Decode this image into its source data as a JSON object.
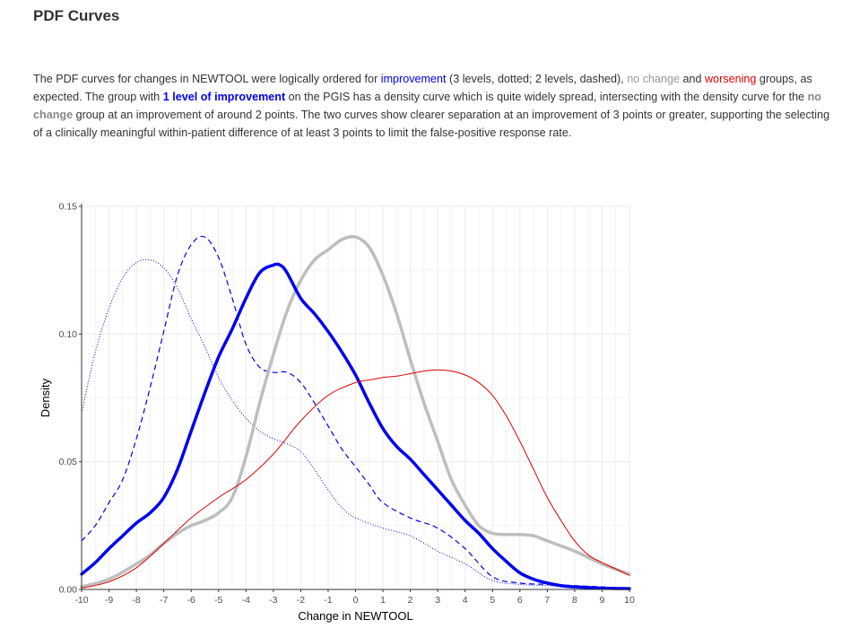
{
  "header": {
    "title": "PDF Curves"
  },
  "description": {
    "p1": "The PDF curves for changes in NEWTOOL were logically ordered for ",
    "improvement": "improvement",
    "p2": " (3 levels, dotted; 2 levels, dashed), ",
    "no_change": "no change",
    "p3": " and ",
    "worsening": "worsening",
    "p4": " groups, as expected. The group with ",
    "one_level": "1 level of improvement",
    "p5": " on the PGIS has a density curve which is quite widely spread, intersecting with the density curve for the ",
    "no_change_bold": "no change",
    "p6": " group at an improvement of around 2 points. The two curves show clearer separation at an improvement of 3 points or greater, supporting the selecting of a clinically meaningful within-patient difference of at least 3 points to limit the false-positive response rate."
  },
  "colors": {
    "improvement": "#0000ee",
    "no_change": "#bebebe",
    "worsening": "#dd0000",
    "grid": "#ebebeb"
  },
  "chart_data": {
    "type": "line",
    "xlabel": "Change in NEWTOOL",
    "ylabel": "Density",
    "xlim": [
      -10,
      10
    ],
    "ylim": [
      0,
      0.15
    ],
    "x_ticks": [
      -10,
      -9,
      -8,
      -7,
      -6,
      -5,
      -4,
      -3,
      -2,
      -1,
      0,
      1,
      2,
      3,
      4,
      5,
      6,
      7,
      8,
      9,
      10
    ],
    "x_tick_labels": [
      "-10",
      "-9",
      "-8",
      "-7",
      "-6",
      "-5",
      "-4",
      "-3",
      "-2",
      "-1",
      "0",
      "1",
      "2",
      "3",
      "4",
      "5",
      "6",
      "7",
      "8",
      "9",
      "10"
    ],
    "y_ticks": [
      0,
      0.05,
      0.1,
      0.15
    ],
    "y_tick_labels": [
      "0.00",
      "0.05",
      "0.10",
      "0.15"
    ],
    "grid": true,
    "legend": "none",
    "series": [
      {
        "style": "dotted",
        "color": "#0000ee",
        "width": 1,
        "x": [
          -10,
          -9.5,
          -9,
          -8.5,
          -8,
          -7.5,
          -7,
          -6.5,
          -6,
          -5.5,
          -5,
          -4.5,
          -4,
          -3.5,
          -3,
          -2.5,
          -2,
          -1.5,
          -1,
          -0.5,
          0,
          1,
          2,
          3,
          4,
          5,
          6,
          7,
          8,
          9,
          10
        ],
        "y": [
          0.069,
          0.093,
          0.11,
          0.122,
          0.128,
          0.129,
          0.126,
          0.118,
          0.106,
          0.095,
          0.083,
          0.074,
          0.067,
          0.062,
          0.059,
          0.057,
          0.054,
          0.047,
          0.039,
          0.032,
          0.028,
          0.024,
          0.021,
          0.015,
          0.01,
          0.0035,
          0.002,
          0.0015,
          0.001,
          0.0005,
          0.0005
        ]
      },
      {
        "style": "dashed",
        "color": "#0000ee",
        "width": 1.2,
        "x": [
          -10,
          -9.5,
          -9,
          -8.5,
          -8,
          -7.5,
          -7,
          -6.5,
          -6,
          -5.5,
          -5,
          -4.5,
          -4,
          -3.5,
          -3,
          -2.5,
          -2,
          -1.5,
          -1,
          -0.5,
          0,
          0.5,
          1,
          2,
          3,
          4,
          5,
          6,
          7,
          8,
          9,
          10
        ],
        "y": [
          0.019,
          0.025,
          0.034,
          0.043,
          0.059,
          0.079,
          0.101,
          0.123,
          0.135,
          0.138,
          0.13,
          0.114,
          0.096,
          0.087,
          0.085,
          0.085,
          0.081,
          0.073,
          0.064,
          0.055,
          0.048,
          0.041,
          0.034,
          0.028,
          0.024,
          0.016,
          0.005,
          0.0025,
          0.002,
          0.0015,
          0.001,
          0.0005
        ]
      },
      {
        "style": "solid",
        "color": "#bebebe",
        "width": 3.5,
        "x": [
          -10,
          -9,
          -8,
          -7.5,
          -7,
          -6.5,
          -6,
          -5.5,
          -5,
          -4.5,
          -4,
          -3.5,
          -3,
          -2.5,
          -2,
          -1.5,
          -1,
          -0.5,
          0,
          0.5,
          1,
          1.5,
          2,
          2.5,
          3,
          3.5,
          4,
          4.5,
          5,
          5.5,
          6,
          6.5,
          7,
          8,
          9,
          10
        ],
        "y": [
          0.001,
          0.004,
          0.01,
          0.0135,
          0.018,
          0.022,
          0.025,
          0.027,
          0.03,
          0.036,
          0.052,
          0.073,
          0.092,
          0.109,
          0.121,
          0.129,
          0.133,
          0.137,
          0.138,
          0.134,
          0.123,
          0.108,
          0.09,
          0.073,
          0.058,
          0.043,
          0.033,
          0.025,
          0.022,
          0.0215,
          0.0215,
          0.021,
          0.019,
          0.015,
          0.01,
          0.006
        ]
      },
      {
        "style": "solid",
        "color": "#0000ee",
        "width": 3.5,
        "x": [
          -10,
          -9.5,
          -9,
          -8.5,
          -8,
          -7.5,
          -7,
          -6.5,
          -6,
          -5.5,
          -5,
          -4.5,
          -4,
          -3.5,
          -3,
          -2.75,
          -2.5,
          -2,
          -1.5,
          -1,
          -0.5,
          0,
          0.5,
          1,
          1.5,
          2,
          2.5,
          3,
          3.5,
          4,
          4.5,
          5,
          5.5,
          6,
          6.5,
          7,
          7.5,
          8,
          9,
          10
        ],
        "y": [
          0.006,
          0.0105,
          0.016,
          0.021,
          0.026,
          0.03,
          0.036,
          0.047,
          0.062,
          0.077,
          0.091,
          0.102,
          0.114,
          0.124,
          0.127,
          0.127,
          0.124,
          0.114,
          0.108,
          0.101,
          0.093,
          0.084,
          0.073,
          0.063,
          0.056,
          0.051,
          0.045,
          0.039,
          0.033,
          0.027,
          0.022,
          0.016,
          0.011,
          0.0065,
          0.004,
          0.0025,
          0.0015,
          0.001,
          0.0005,
          0.0003
        ]
      },
      {
        "style": "solid",
        "color": "#dd0000",
        "width": 1,
        "x": [
          -10,
          -9,
          -8,
          -7,
          -6,
          -5,
          -4,
          -3,
          -2,
          -1,
          0,
          0.5,
          1,
          1.5,
          2,
          2.5,
          3,
          3.5,
          4,
          4.5,
          5,
          5.5,
          6,
          6.5,
          7,
          7.5,
          8,
          8.5,
          9,
          9.5,
          10
        ],
        "y": [
          0.0005,
          0.003,
          0.0085,
          0.018,
          0.028,
          0.036,
          0.043,
          0.053,
          0.066,
          0.076,
          0.081,
          0.082,
          0.083,
          0.0835,
          0.0845,
          0.0855,
          0.086,
          0.0855,
          0.084,
          0.081,
          0.076,
          0.068,
          0.058,
          0.047,
          0.036,
          0.027,
          0.019,
          0.0135,
          0.0105,
          0.008,
          0.0055
        ]
      }
    ]
  }
}
